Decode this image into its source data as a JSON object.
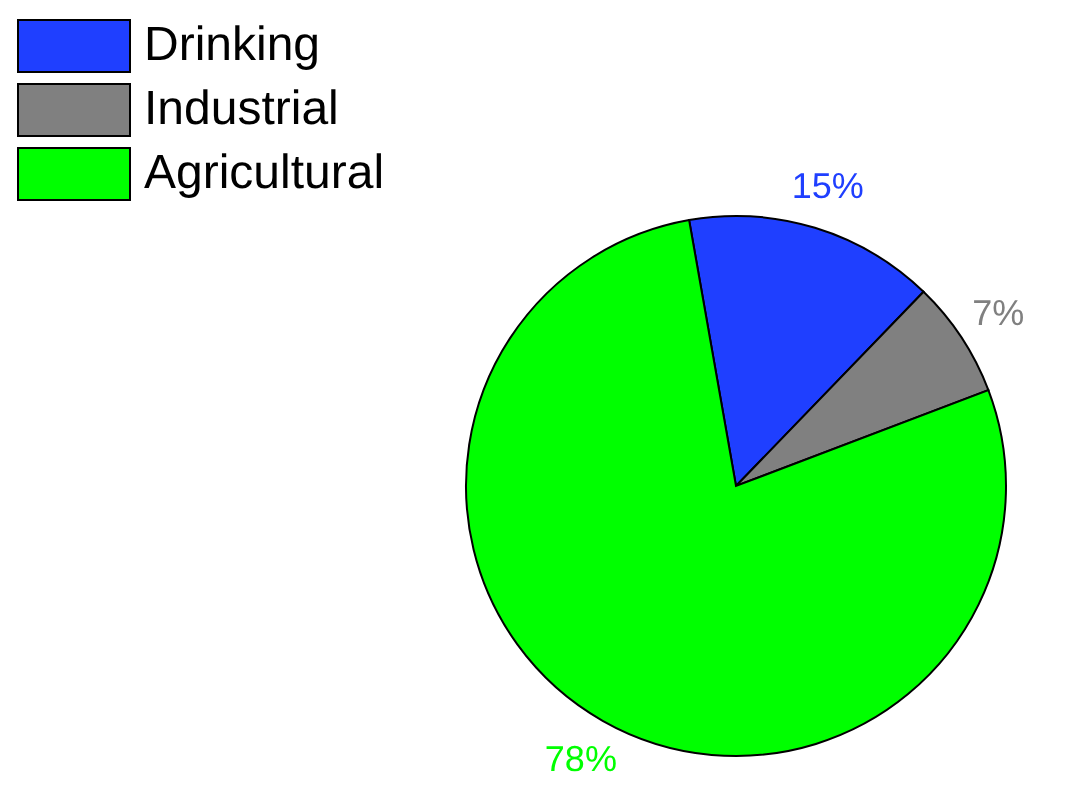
{
  "chart_data": {
    "type": "pie",
    "categories": [
      "Drinking",
      "Industrial",
      "Agricultural"
    ],
    "values": [
      15,
      7,
      78
    ],
    "colors": [
      "#1f3fff",
      "#808080",
      "#00ff00"
    ],
    "value_labels": [
      "15%",
      "7%",
      "78%"
    ],
    "legend": "top left"
  }
}
